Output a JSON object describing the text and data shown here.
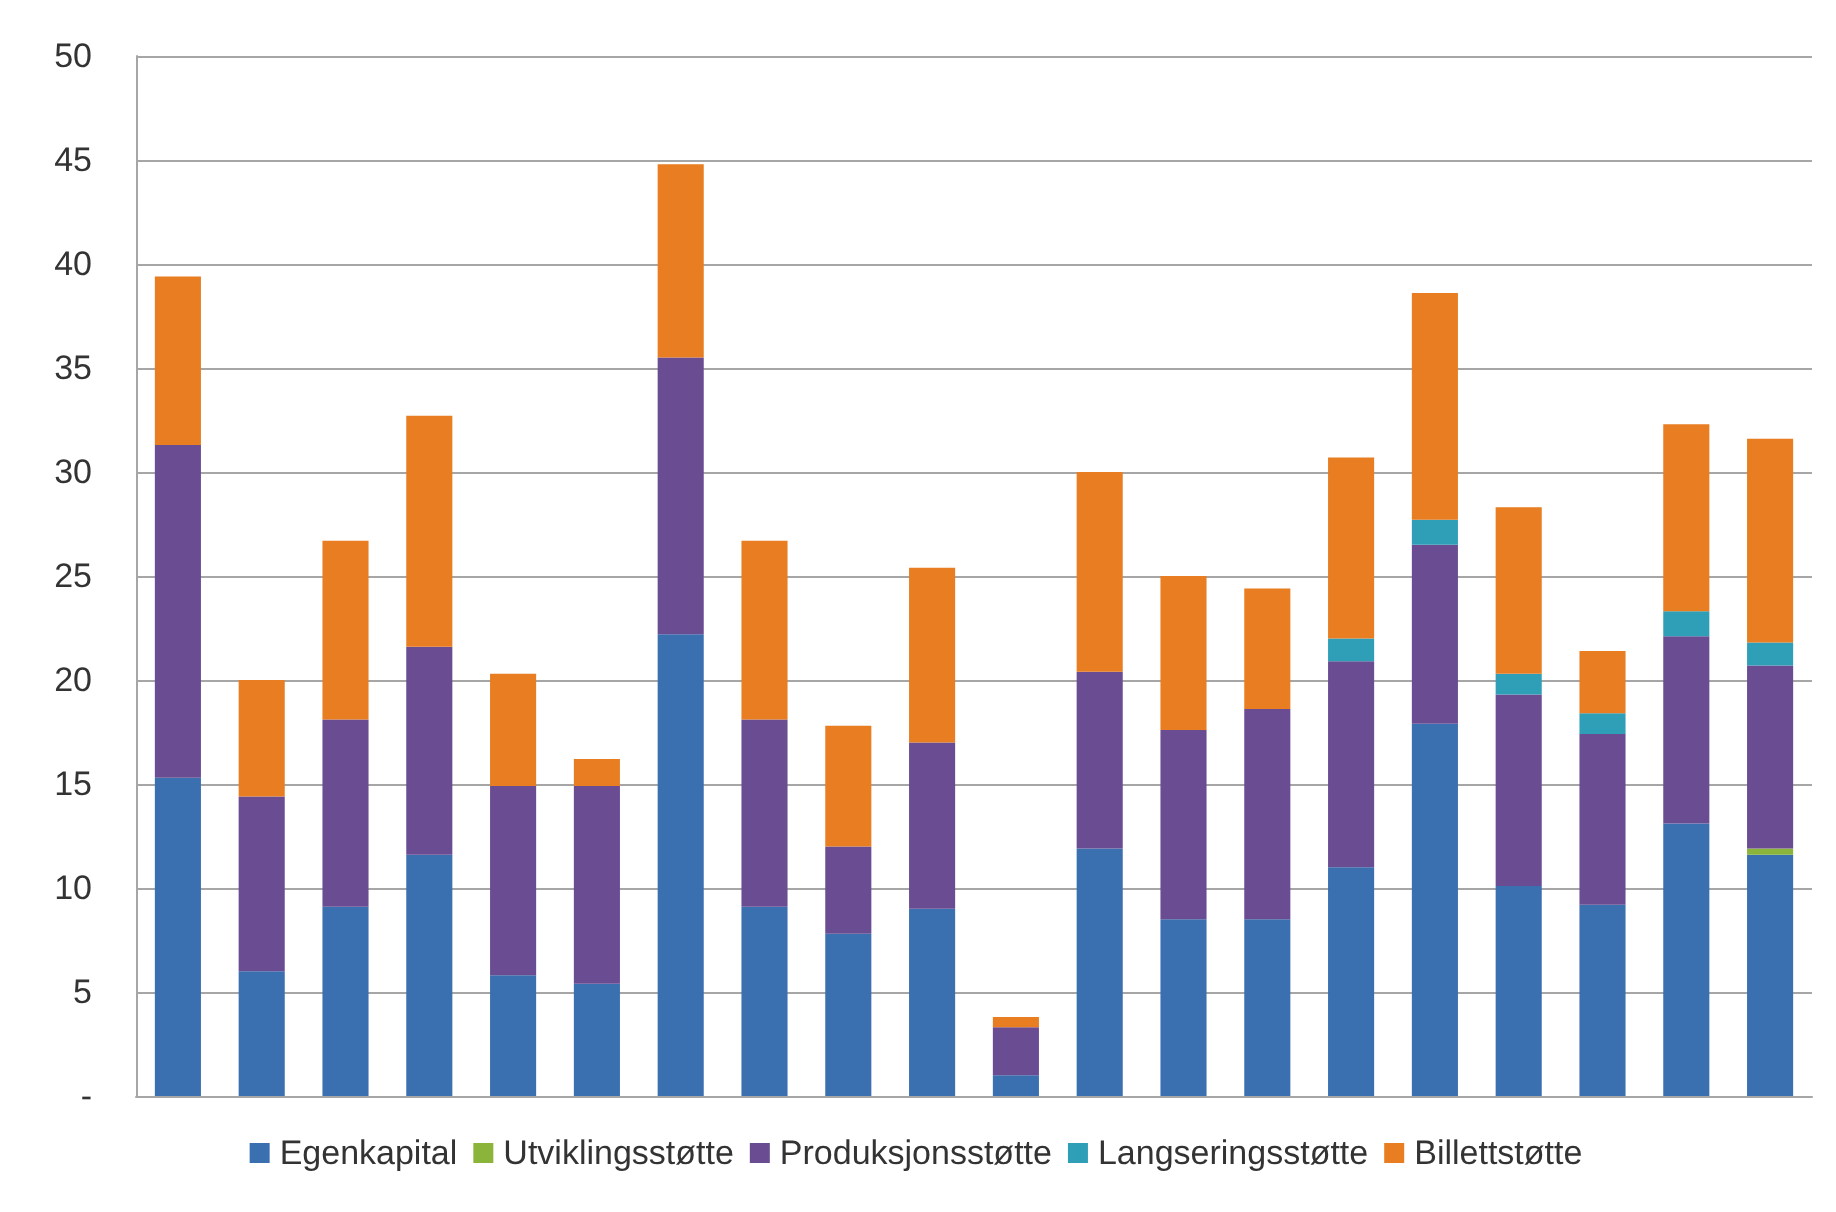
{
  "chart_data": {
    "type": "bar",
    "stacked": true,
    "categories": [
      null,
      null,
      null,
      null,
      null,
      null,
      null,
      null,
      null,
      null,
      null,
      null,
      null,
      null,
      null,
      null,
      null,
      null,
      null,
      null
    ],
    "series": [
      {
        "name": "Egenkapital",
        "color": "#3a6fb0",
        "values": [
          15.3,
          6.0,
          9.1,
          11.6,
          5.8,
          5.4,
          22.2,
          9.1,
          7.8,
          9.0,
          1.0,
          11.9,
          8.5,
          8.5,
          11.0,
          17.9,
          10.1,
          9.2,
          13.1,
          11.6
        ]
      },
      {
        "name": "Utviklingsstøtte",
        "color": "#8bb43a",
        "values": [
          0,
          0,
          0,
          0,
          0,
          0,
          0,
          0,
          0,
          0,
          0,
          0,
          0,
          0,
          0,
          0,
          0,
          0,
          0,
          0.3
        ]
      },
      {
        "name": "Produksjonsstøtte",
        "color": "#6a4c93",
        "values": [
          16.0,
          8.4,
          9.0,
          10.0,
          9.1,
          9.5,
          13.3,
          9.0,
          4.2,
          8.0,
          2.3,
          8.5,
          9.1,
          10.1,
          9.9,
          8.6,
          9.2,
          8.2,
          9.0,
          8.8
        ]
      },
      {
        "name": "Langseringsstøtte",
        "color": "#2f9fb8",
        "values": [
          0,
          0,
          0,
          0,
          0,
          0,
          0,
          0,
          0,
          0,
          0,
          0,
          0,
          0,
          1.1,
          1.2,
          1.0,
          1.0,
          1.2,
          1.1
        ]
      },
      {
        "name": "Billettstøtte",
        "color": "#e87d22",
        "values": [
          8.1,
          5.6,
          8.6,
          11.1,
          5.4,
          1.3,
          9.3,
          8.6,
          5.8,
          8.4,
          0.5,
          9.6,
          7.4,
          5.8,
          8.7,
          10.9,
          8.0,
          3.0,
          9.0,
          9.8
        ]
      }
    ],
    "ylim": [
      0,
      50
    ],
    "yticks": [
      {
        "value": 0,
        "label": "-"
      },
      5,
      10,
      15,
      20,
      25,
      30,
      35,
      40,
      45,
      50
    ],
    "grid": "y",
    "legend": "bottom"
  }
}
